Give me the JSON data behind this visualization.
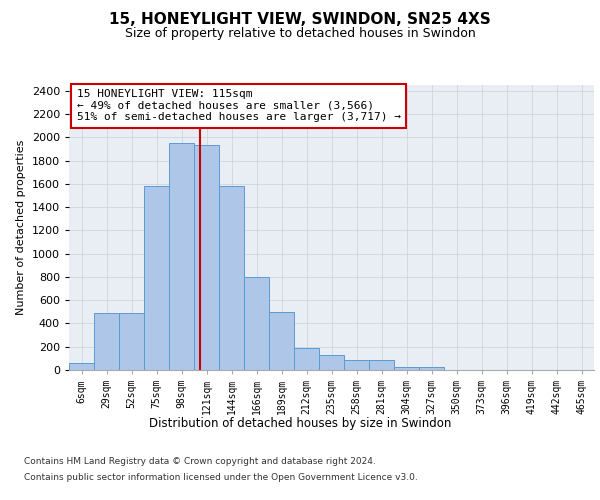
{
  "title": "15, HONEYLIGHT VIEW, SWINDON, SN25 4XS",
  "subtitle": "Size of property relative to detached houses in Swindon",
  "xlabel": "Distribution of detached houses by size in Swindon",
  "ylabel": "Number of detached properties",
  "bar_color": "#aec6e8",
  "bar_edge_color": "#5b9bd5",
  "background_color": "#e8eef4",
  "categories": [
    "6sqm",
    "29sqm",
    "52sqm",
    "75sqm",
    "98sqm",
    "121sqm",
    "144sqm",
    "166sqm",
    "189sqm",
    "212sqm",
    "235sqm",
    "258sqm",
    "281sqm",
    "304sqm",
    "327sqm",
    "350sqm",
    "373sqm",
    "396sqm",
    "419sqm",
    "442sqm",
    "465sqm"
  ],
  "values": [
    60,
    490,
    490,
    1580,
    1950,
    1930,
    1580,
    800,
    500,
    190,
    130,
    90,
    90,
    30,
    30,
    0,
    0,
    0,
    0,
    0,
    0
  ],
  "ylim": [
    0,
    2450
  ],
  "yticks": [
    0,
    200,
    400,
    600,
    800,
    1000,
    1200,
    1400,
    1600,
    1800,
    2000,
    2200,
    2400
  ],
  "vline_x": 4.74,
  "vline_color": "#cc0000",
  "annotation_text": "15 HONEYLIGHT VIEW: 115sqm\n← 49% of detached houses are smaller (3,566)\n51% of semi-detached houses are larger (3,717) →",
  "annotation_box_facecolor": "#ffffff",
  "annotation_box_edgecolor": "#cc0000",
  "footer_line1": "Contains HM Land Registry data © Crown copyright and database right 2024.",
  "footer_line2": "Contains public sector information licensed under the Open Government Licence v3.0.",
  "grid_color": "#c8d0dc"
}
